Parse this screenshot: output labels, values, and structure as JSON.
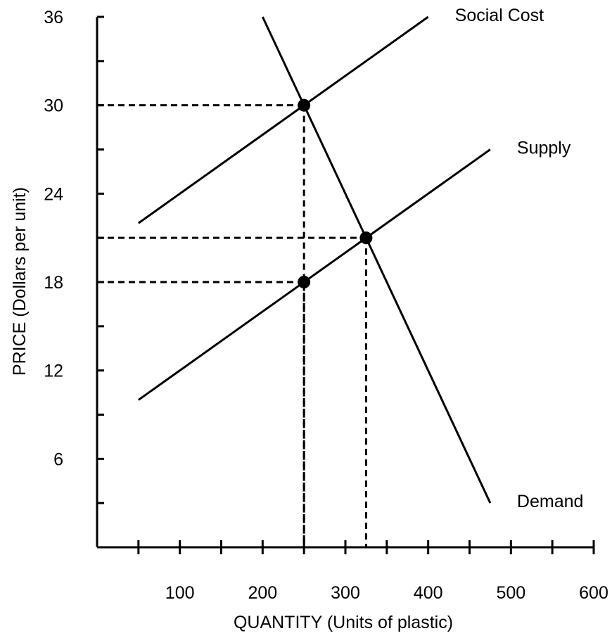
{
  "chart_data": {
    "type": "line",
    "xlabel": "QUANTITY (Units of plastic)",
    "ylabel": "PRICE (Dollars per unit)",
    "xlim": [
      0,
      600
    ],
    "ylim": [
      0,
      36
    ],
    "x_ticks": [
      100,
      200,
      300,
      400,
      500,
      600
    ],
    "y_ticks": [
      6,
      12,
      18,
      24,
      30,
      36
    ],
    "x_minor_step": 50,
    "y_minor_step": 3,
    "grid": false,
    "legend": "none (series labeled at line ends)",
    "series": [
      {
        "name": "Social Cost",
        "x": [
          50,
          400
        ],
        "y": [
          22,
          36
        ]
      },
      {
        "name": "Supply",
        "x": [
          50,
          475
        ],
        "y": [
          10,
          27
        ]
      },
      {
        "name": "Demand",
        "x": [
          200,
          475
        ],
        "y": [
          36,
          3
        ]
      }
    ],
    "points": [
      {
        "x": 250,
        "y": 30
      },
      {
        "x": 325,
        "y": 21
      },
      {
        "x": 250,
        "y": 18
      }
    ],
    "guides": [
      {
        "x": 250,
        "y": 30
      },
      {
        "x": 325,
        "y": 21
      },
      {
        "x": 250,
        "y": 18
      }
    ],
    "colors": {
      "line": "#000000",
      "background": "#ffffff"
    }
  }
}
